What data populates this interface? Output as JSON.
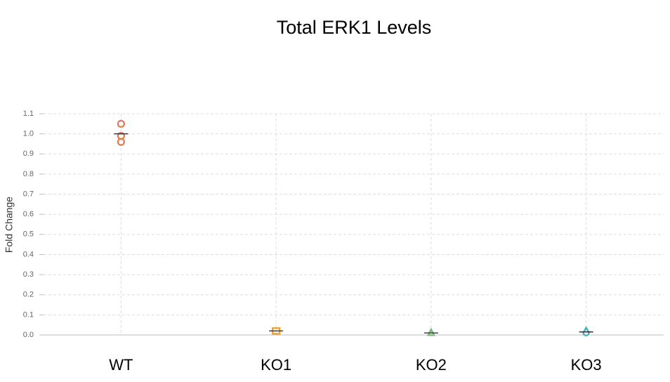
{
  "chart_data": {
    "type": "dot",
    "title": "Total ERK1 Levels",
    "y_label": "Fold Change",
    "categories": [
      "WT",
      "KO1",
      "KO2",
      "KO3"
    ],
    "values": [
      [
        1.05,
        0.99,
        0.96
      ],
      [
        0.02,
        0.02,
        0.02
      ],
      [
        0.01,
        0.01,
        0.01
      ],
      [
        0.015,
        0.015,
        0.015
      ]
    ],
    "means": [
      1.0,
      0.02,
      0.01,
      0.015
    ],
    "colors": [
      "#e07b54",
      "#eea43a",
      "#7cba7c",
      "#4aaec4"
    ],
    "markers": [
      "circle",
      "square",
      "triangle",
      "drop"
    ],
    "ylim": [
      0,
      1.1
    ],
    "yticks": [
      {
        "value": 0,
        "label": "0.0"
      },
      0.1,
      0.2,
      0.3,
      0.4,
      0.5,
      0.6,
      0.7,
      0.8,
      0.9,
      {
        "value": 1,
        "label": "1.0"
      },
      1.1
    ],
    "grid": true
  }
}
